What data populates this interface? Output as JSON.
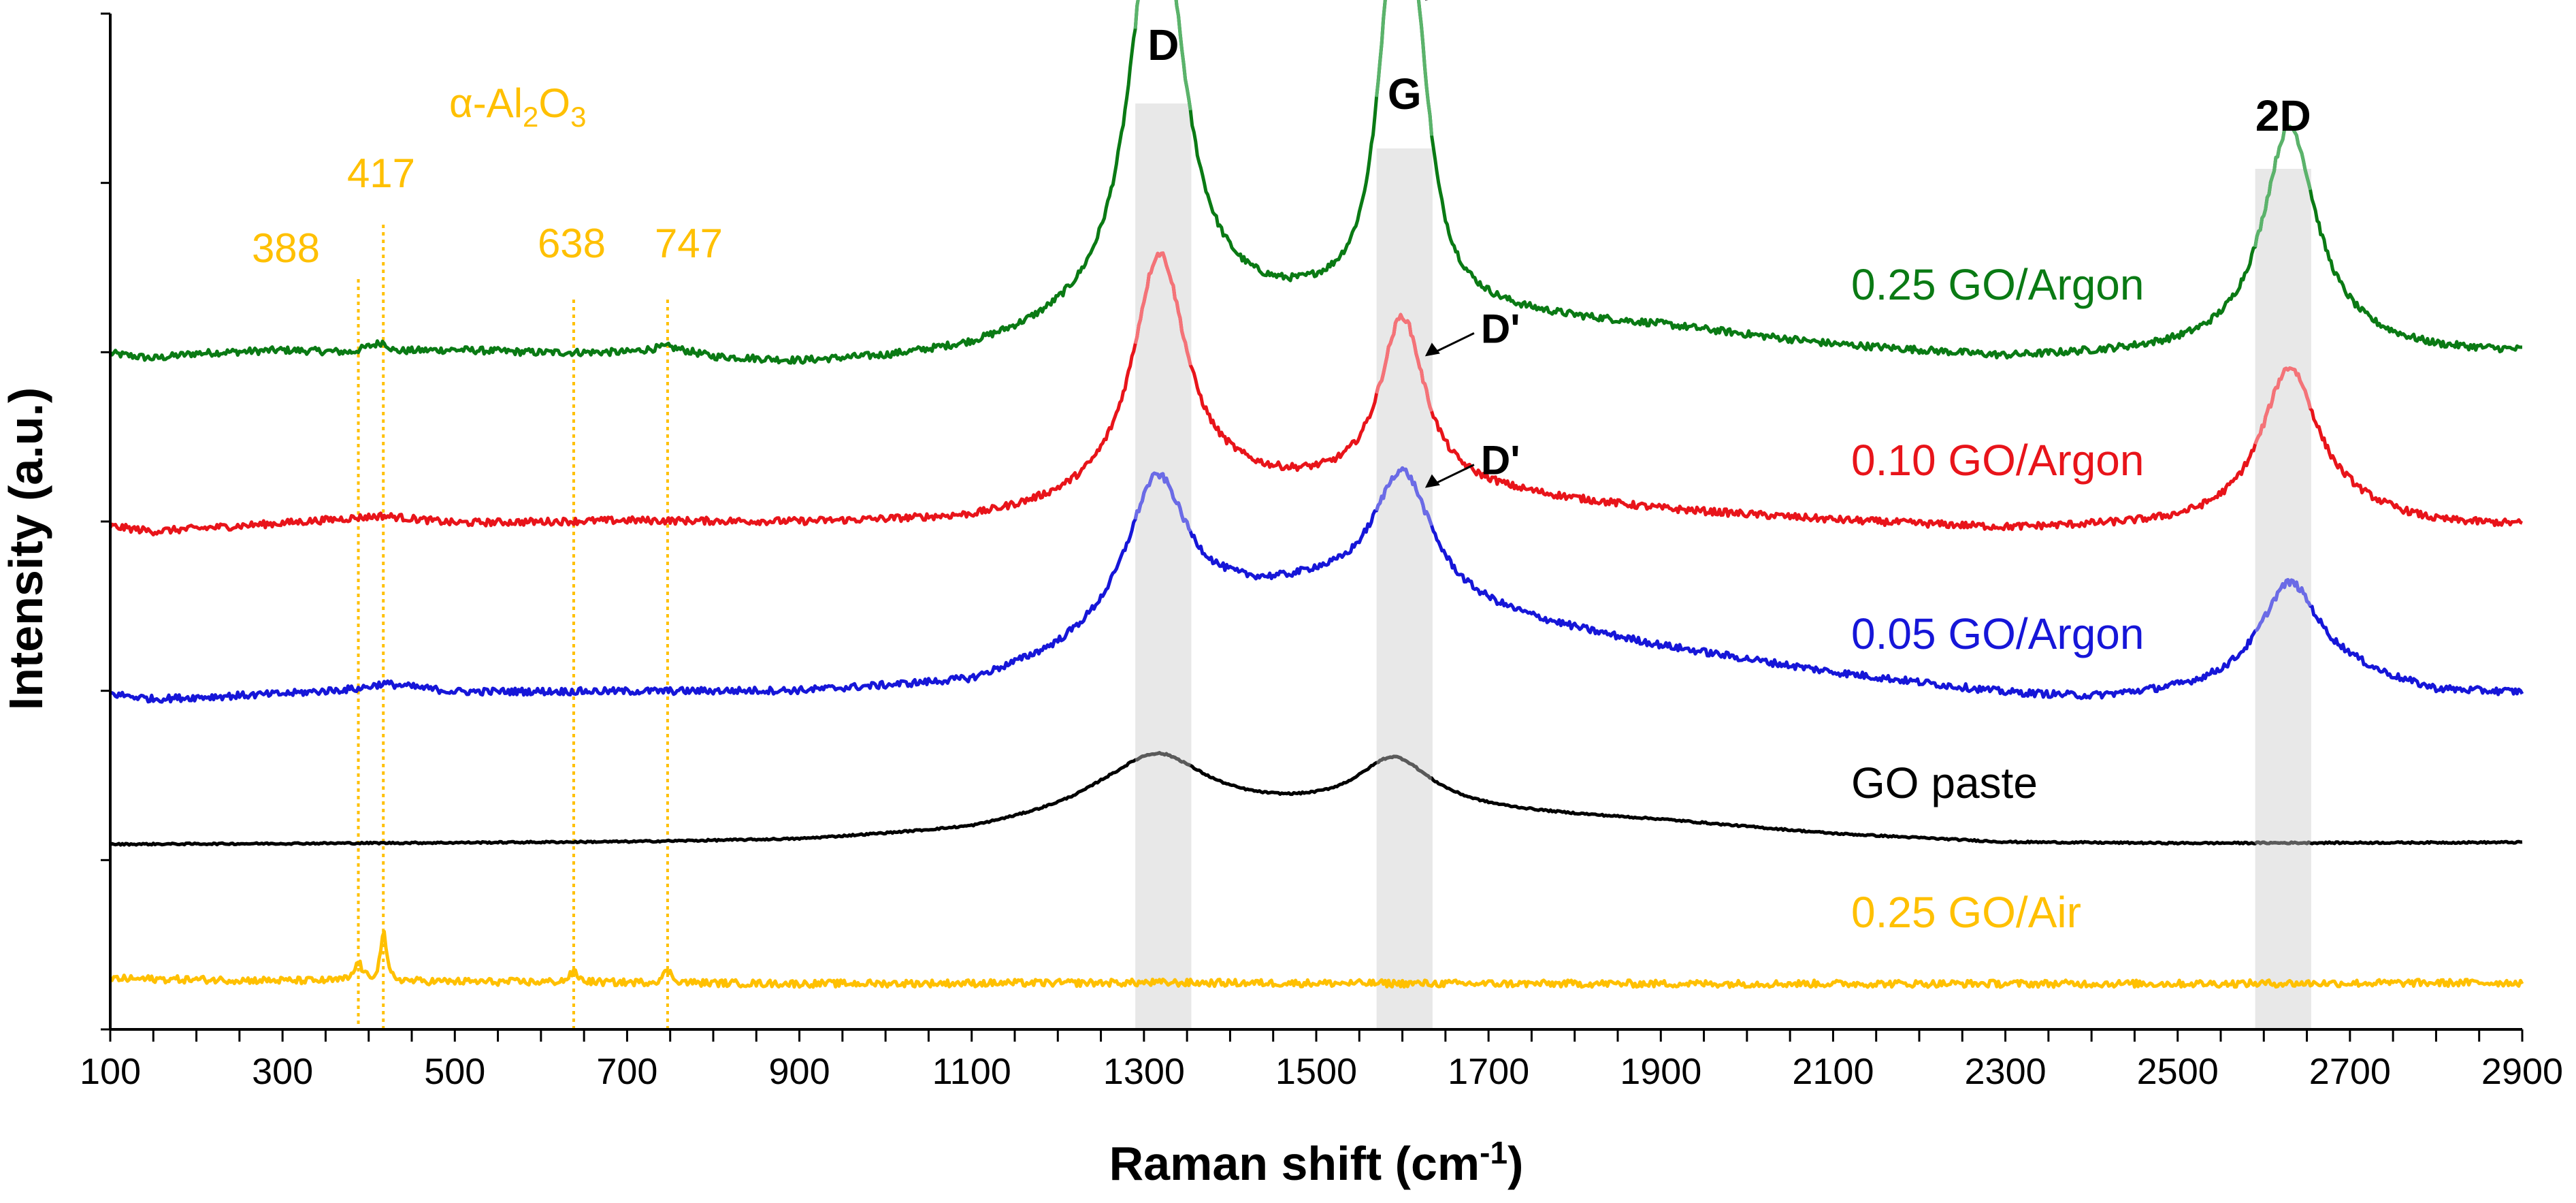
{
  "chart_data": {
    "type": "line",
    "title": "",
    "xlabel": "Raman shift (cm",
    "xlabel_sup": "-1",
    "xlabel_end": ")",
    "ylabel": "Intensity (a.u.)",
    "xlim": [
      100,
      2900
    ],
    "xticks": [
      100,
      300,
      500,
      700,
      900,
      1100,
      1300,
      1500,
      1700,
      1900,
      2100,
      2300,
      2500,
      2700,
      2900
    ],
    "grid": false,
    "yticks_labeled": false,
    "stacked_offset": true,
    "bands": [
      {
        "label": "D",
        "from": 1290,
        "to": 1355
      },
      {
        "label": "G",
        "from": 1570,
        "to": 1635
      },
      {
        "label": "2D",
        "from": 2590,
        "to": 2655
      }
    ],
    "alumina": {
      "label_prefix": "α-Al",
      "sub1": "2",
      "label_mid": "O",
      "sub2": "3",
      "color": "#FFC000",
      "peaks": [
        388,
        417,
        638,
        747
      ],
      "peak_labels": [
        "388",
        "417",
        "638",
        "747"
      ]
    },
    "shoulder_label": "D'",
    "series": [
      {
        "name": "0.25 GO/Argon",
        "color": "#0A7A14",
        "highlight": "#5BB36B",
        "baseline": 0.66,
        "peaks": [
          [
            1315,
            0.44,
            36
          ],
          [
            1590,
            0.3,
            22
          ],
          [
            1615,
            0.2,
            22
          ],
          [
            2630,
            0.22,
            38
          ]
        ],
        "points": [
          [
            100,
            0.665
          ],
          [
            150,
            0.66
          ],
          [
            200,
            0.665
          ],
          [
            300,
            0.668
          ],
          [
            380,
            0.666
          ],
          [
            417,
            0.676
          ],
          [
            430,
            0.667
          ],
          [
            500,
            0.668
          ],
          [
            600,
            0.665
          ],
          [
            700,
            0.665
          ],
          [
            747,
            0.67
          ],
          [
            800,
            0.66
          ],
          [
            900,
            0.655
          ],
          [
            1000,
            0.658
          ],
          [
            1100,
            0.665
          ],
          [
            1200,
            0.68
          ],
          [
            1400,
            0.7
          ],
          [
            1500,
            0.705
          ],
          [
            1700,
            0.7
          ],
          [
            1900,
            0.69
          ],
          [
            2100,
            0.672
          ],
          [
            2300,
            0.66
          ],
          [
            2500,
            0.665
          ],
          [
            2700,
            0.67
          ],
          [
            2800,
            0.665
          ],
          [
            2900,
            0.665
          ]
        ],
        "shoulder_at": 1620
      },
      {
        "name": "0.10 GO/Argon",
        "color": "#E8141A",
        "highlight": "#F47378",
        "baseline": 0.495,
        "peaks": [
          [
            1318,
            0.24,
            38
          ],
          [
            1600,
            0.17,
            32
          ],
          [
            2630,
            0.15,
            40
          ]
        ],
        "points": [
          [
            100,
            0.495
          ],
          [
            150,
            0.49
          ],
          [
            300,
            0.498
          ],
          [
            417,
            0.505
          ],
          [
            500,
            0.498
          ],
          [
            700,
            0.5
          ],
          [
            900,
            0.498
          ],
          [
            1100,
            0.5
          ],
          [
            1200,
            0.51
          ],
          [
            1400,
            0.53
          ],
          [
            1500,
            0.53
          ],
          [
            1700,
            0.525
          ],
          [
            1900,
            0.51
          ],
          [
            2100,
            0.5
          ],
          [
            2300,
            0.492
          ],
          [
            2500,
            0.495
          ],
          [
            2700,
            0.505
          ],
          [
            2800,
            0.495
          ],
          [
            2900,
            0.495
          ]
        ],
        "shoulder_at": 1620
      },
      {
        "name": "0.05 GO/Argon",
        "color": "#1616D8",
        "highlight": "#6B6BE6",
        "baseline": 0.328,
        "peaks": [
          [
            1315,
            0.14,
            42
          ],
          [
            1600,
            0.13,
            42
          ],
          [
            2630,
            0.1,
            42
          ]
        ],
        "points": [
          [
            100,
            0.33
          ],
          [
            150,
            0.325
          ],
          [
            300,
            0.33
          ],
          [
            388,
            0.335
          ],
          [
            417,
            0.34
          ],
          [
            500,
            0.332
          ],
          [
            700,
            0.332
          ],
          [
            900,
            0.332
          ],
          [
            1100,
            0.34
          ],
          [
            1200,
            0.365
          ],
          [
            1300,
            0.4
          ],
          [
            1400,
            0.42
          ],
          [
            1500,
            0.43
          ],
          [
            1700,
            0.405
          ],
          [
            1800,
            0.39
          ],
          [
            1900,
            0.375
          ],
          [
            2100,
            0.35
          ],
          [
            2300,
            0.33
          ],
          [
            2400,
            0.325
          ],
          [
            2500,
            0.33
          ],
          [
            2700,
            0.345
          ],
          [
            2800,
            0.33
          ],
          [
            2900,
            0.33
          ]
        ],
        "shoulder_at": 1620
      },
      {
        "name": "GO paste",
        "color": "#000000",
        "highlight": "#5A5A5A",
        "baseline": 0.182,
        "peaks": [
          [
            1315,
            0.055,
            70
          ],
          [
            1590,
            0.05,
            52
          ]
        ],
        "points": [
          [
            100,
            0.182
          ],
          [
            400,
            0.183
          ],
          [
            700,
            0.184
          ],
          [
            900,
            0.186
          ],
          [
            1100,
            0.195
          ],
          [
            1250,
            0.215
          ],
          [
            1400,
            0.215
          ],
          [
            1500,
            0.215
          ],
          [
            1650,
            0.215
          ],
          [
            1700,
            0.213
          ],
          [
            1900,
            0.205
          ],
          [
            2100,
            0.192
          ],
          [
            2300,
            0.184
          ],
          [
            2500,
            0.183
          ],
          [
            2900,
            0.184
          ]
        ]
      },
      {
        "name": "0.25 GO/Air",
        "color": "#FFC000",
        "highlight": "#FFC000",
        "baseline": 0.045,
        "peaks": [
          [
            388,
            0.018,
            5
          ],
          [
            417,
            0.048,
            4
          ],
          [
            638,
            0.01,
            6
          ],
          [
            747,
            0.012,
            6
          ]
        ],
        "points": [
          [
            100,
            0.05
          ],
          [
            300,
            0.048
          ],
          [
            500,
            0.047
          ],
          [
            700,
            0.046
          ],
          [
            900,
            0.045
          ],
          [
            1300,
            0.046
          ],
          [
            1700,
            0.045
          ],
          [
            2100,
            0.045
          ],
          [
            2500,
            0.045
          ],
          [
            2900,
            0.046
          ]
        ]
      }
    ]
  }
}
